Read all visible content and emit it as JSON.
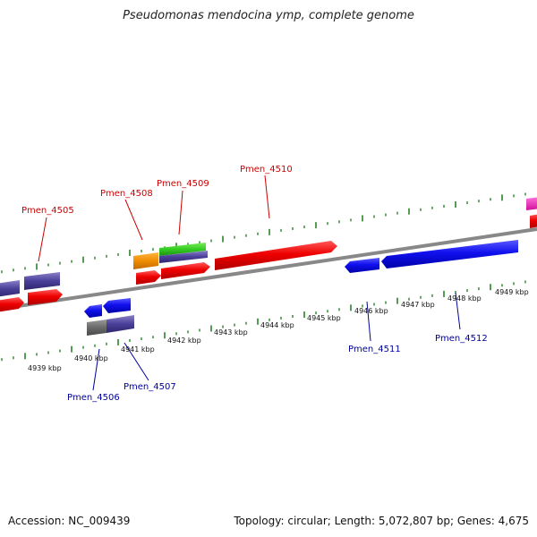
{
  "title": "Pseudomonas mendocina ymp, complete genome",
  "footer": {
    "accession": "Accession: NC_009439",
    "summary": "Topology: circular; Length: 5,072,807 bp; Genes: 4,675"
  },
  "colors": {
    "forward_label": "#cc0000",
    "reverse_label": "#000099",
    "tick": "#1a7a1a",
    "backbone": "#888888"
  },
  "scale_labels": [
    "4939 kbp",
    "4940 kbp",
    "4941 kbp",
    "4942 kbp",
    "4943 kbp",
    "4944 kbp",
    "4945 kbp",
    "4946 kbp",
    "4947 kbp",
    "4948 kbp",
    "4949 kbp"
  ],
  "gene_labels": {
    "pmen_4505": "Pmen_4505",
    "pmen_4506": "Pmen_4506",
    "pmen_4507": "Pmen_4507",
    "pmen_4508": "Pmen_4508",
    "pmen_4509": "Pmen_4509",
    "pmen_4510": "Pmen_4510",
    "pmen_4511": "Pmen_4511",
    "pmen_4512": "Pmen_4512"
  }
}
